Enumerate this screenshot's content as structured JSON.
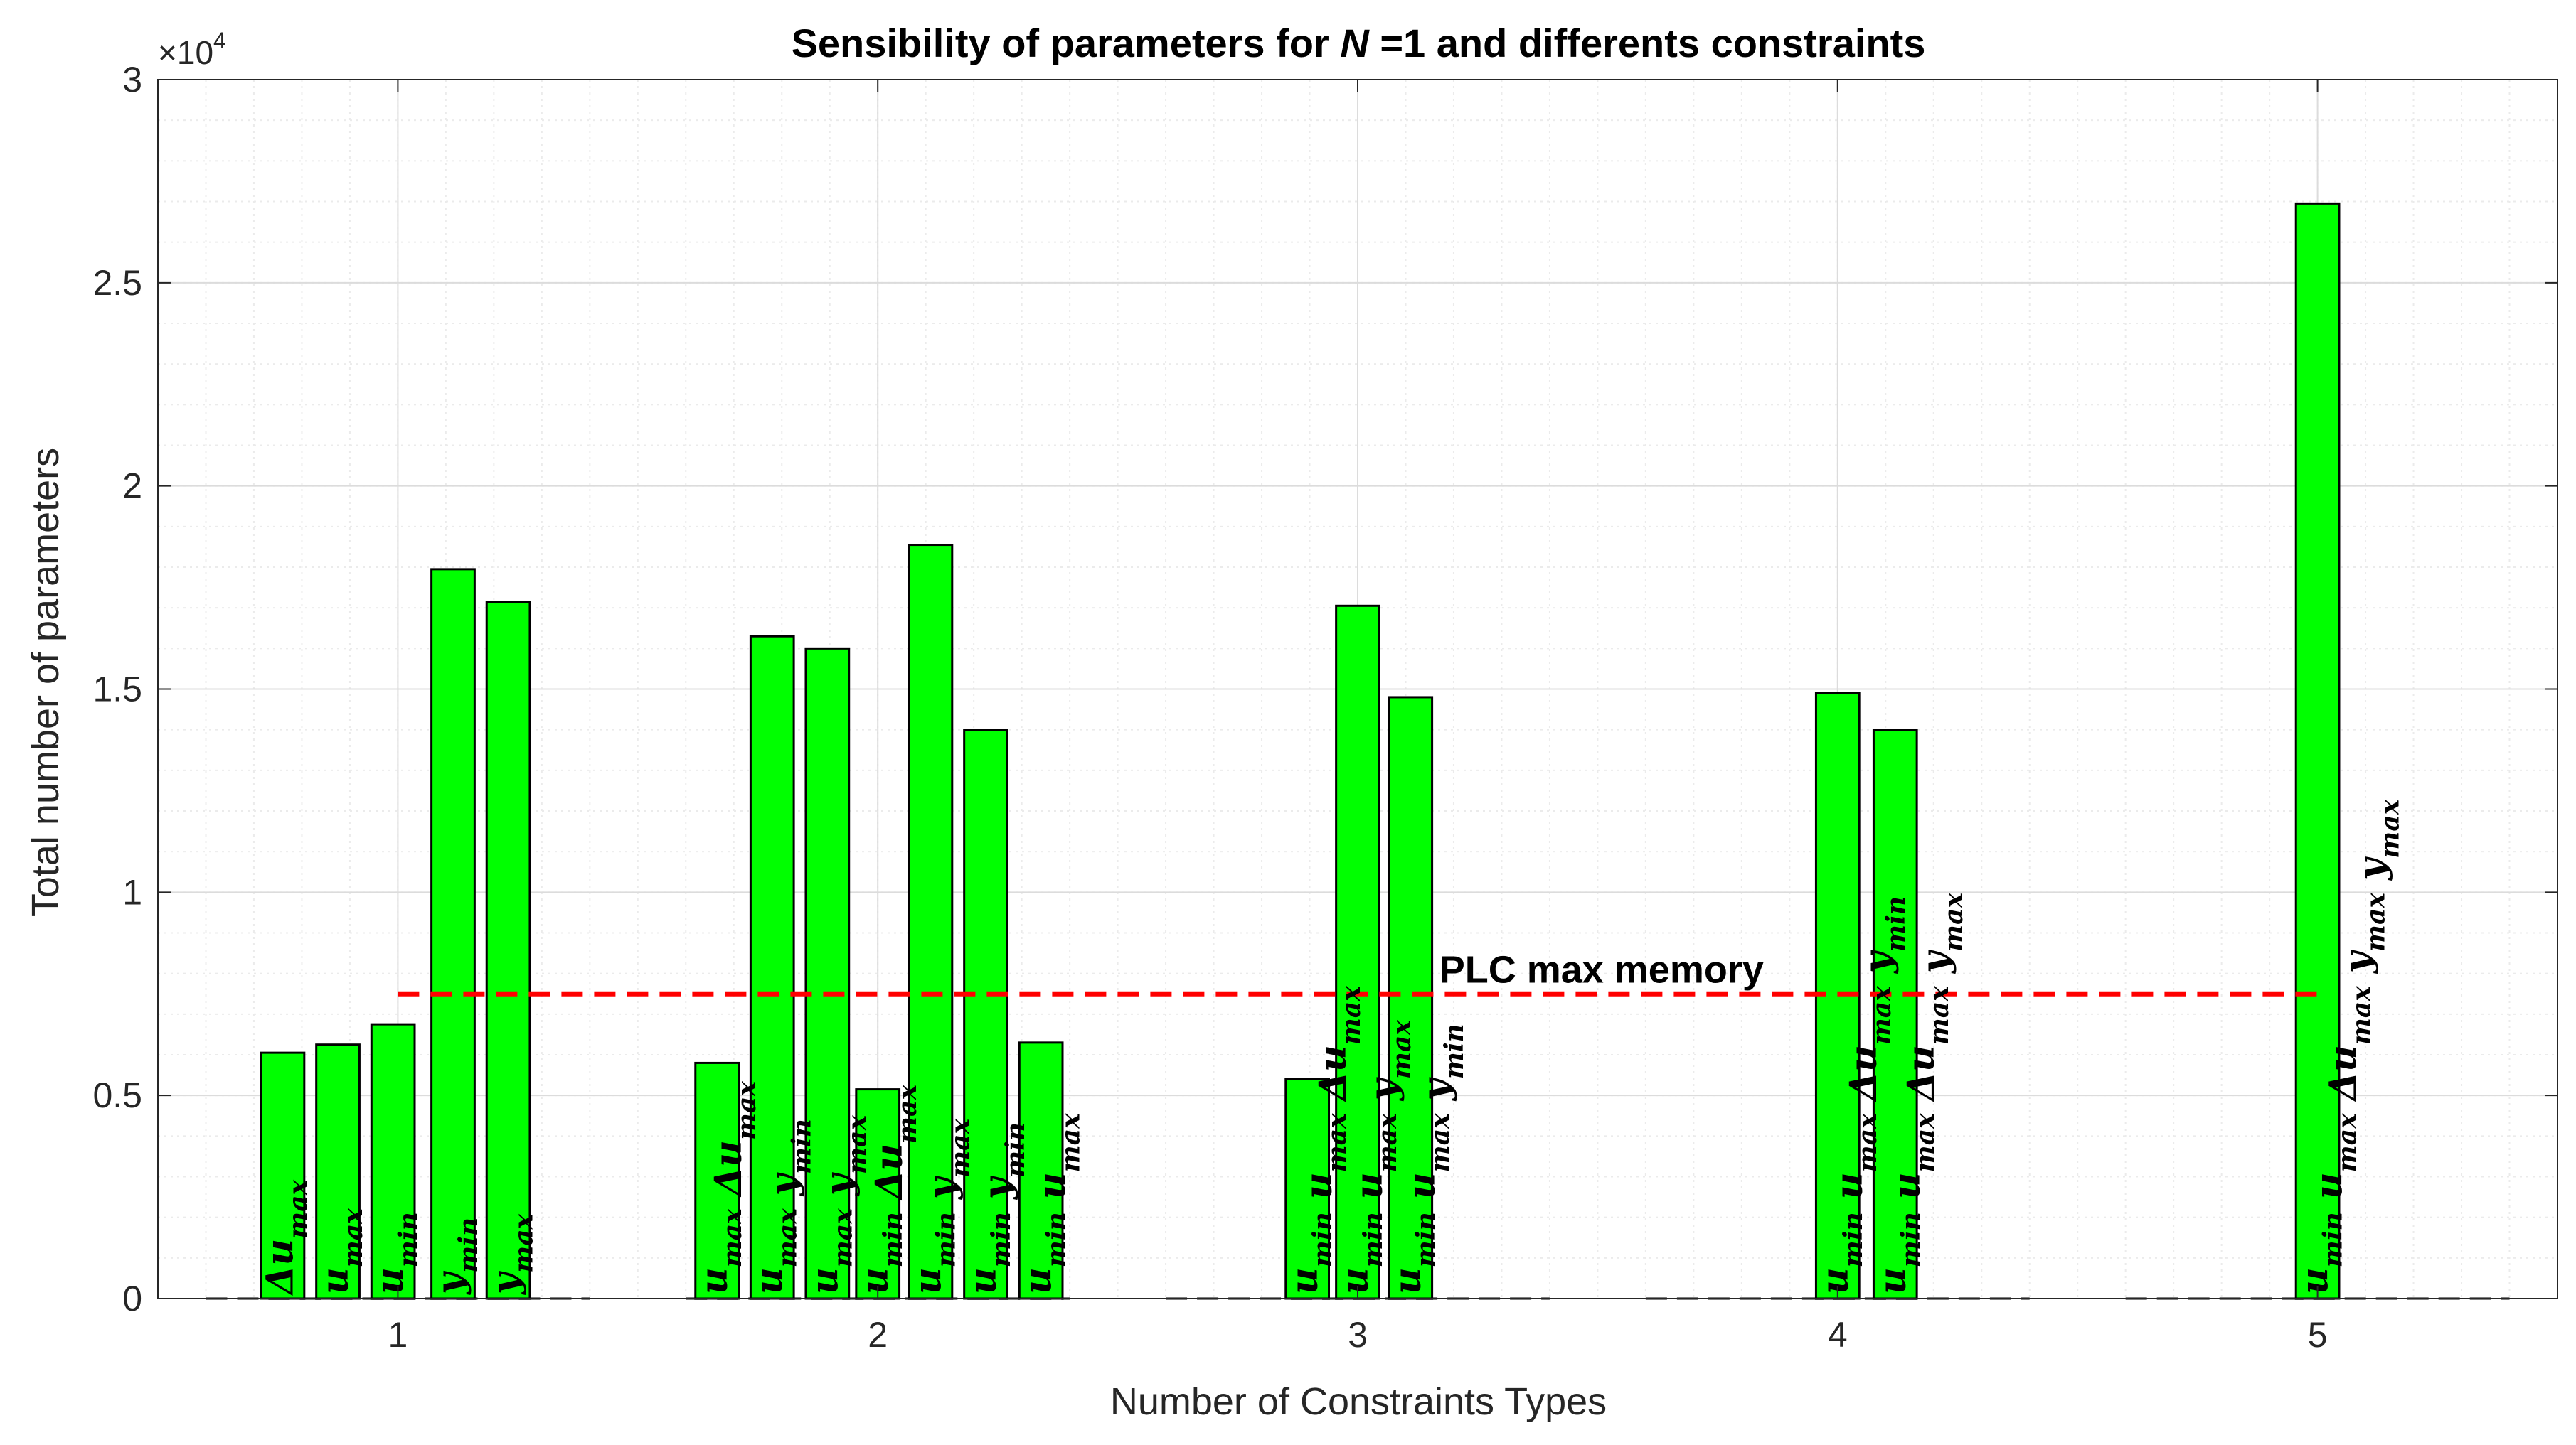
{
  "chart_data": {
    "type": "bar",
    "title": {
      "prefix": "Sensibility of parameters for ",
      "var": "N",
      "suffix": " =1 and differents constraints"
    },
    "xlabel": "Number of Constraints Types",
    "ylabel": "Total number of parameters",
    "y_exponent_label": "×10",
    "y_exponent_power": "4",
    "xlim": [
      0.5,
      5.5
    ],
    "ylim": [
      0,
      30000
    ],
    "x_ticks": [
      1,
      2,
      3,
      4,
      5
    ],
    "x_tick_labels": [
      "1",
      "2",
      "3",
      "4",
      "5"
    ],
    "y_ticks": [
      0,
      5000,
      10000,
      15000,
      20000,
      25000,
      30000
    ],
    "y_tick_labels": [
      "0",
      "0.5",
      "1",
      "1.5",
      "2",
      "2.5",
      "3"
    ],
    "grid": true,
    "minor_grid": true,
    "bar_width": 0.09,
    "bar_color": "#00ff00",
    "groups": [
      {
        "category": 1,
        "bars": [
          {
            "x": 0.76,
            "value": 6050,
            "label": [
              "Δu_max"
            ]
          },
          {
            "x": 0.875,
            "value": 6250,
            "label": [
              "u_max"
            ]
          },
          {
            "x": 0.99,
            "value": 6750,
            "label": [
              "u_min"
            ]
          },
          {
            "x": 1.115,
            "value": 17950,
            "label": [
              "y_min"
            ]
          },
          {
            "x": 1.23,
            "value": 17150,
            "label": [
              "y_max"
            ]
          }
        ]
      },
      {
        "category": 2,
        "bars": [
          {
            "x": 1.665,
            "value": 5800,
            "label": [
              "u_max",
              "Δu_max"
            ]
          },
          {
            "x": 1.78,
            "value": 16300,
            "label": [
              "u_max",
              "y_min"
            ]
          },
          {
            "x": 1.895,
            "value": 16000,
            "label": [
              "u_max",
              "y_max"
            ]
          },
          {
            "x": 2.0,
            "value": 5150,
            "label": [
              "u_min",
              "Δu_max"
            ]
          },
          {
            "x": 2.11,
            "value": 18550,
            "label": [
              "u_min",
              "y_max"
            ]
          },
          {
            "x": 2.225,
            "value": 14000,
            "label": [
              "u_min",
              "y_min"
            ]
          },
          {
            "x": 2.34,
            "value": 6300,
            "label": [
              "u_min",
              "u_max"
            ]
          }
        ]
      },
      {
        "category": 3,
        "bars": [
          {
            "x": 2.895,
            "value": 5400,
            "label": [
              "u_min",
              "u_max",
              "Δu_max"
            ]
          },
          {
            "x": 3.0,
            "value": 17050,
            "label": [
              "u_min",
              "u_max",
              "y_max"
            ]
          },
          {
            "x": 3.11,
            "value": 14800,
            "label": [
              "u_min",
              "u_max",
              "y_min"
            ]
          }
        ]
      },
      {
        "category": 4,
        "bars": [
          {
            "x": 4.0,
            "value": 14900,
            "label": [
              "u_min",
              "u_max",
              "Δu_max",
              "y_min"
            ]
          },
          {
            "x": 4.12,
            "value": 14000,
            "label": [
              "u_min",
              "u_max",
              "Δu_max",
              "y_max"
            ]
          }
        ]
      },
      {
        "category": 5,
        "bars": [
          {
            "x": 5.0,
            "value": 26950,
            "label": [
              "u_min",
              "u_max",
              "Δu_max",
              "y_max",
              "y_max"
            ]
          }
        ]
      }
    ],
    "reference_line": {
      "label": "PLC max memory",
      "value": 7500,
      "x_start": 1.0,
      "x_end": 5.0,
      "color": "#ff0000",
      "label_x": 3.17
    },
    "baseline_dashes": [
      {
        "x_start": 0.6,
        "x_end": 1.4
      },
      {
        "x_start": 1.6,
        "x_end": 2.4
      },
      {
        "x_start": 2.6,
        "x_end": 3.4
      },
      {
        "x_start": 3.6,
        "x_end": 4.4
      },
      {
        "x_start": 4.6,
        "x_end": 5.4
      }
    ]
  }
}
